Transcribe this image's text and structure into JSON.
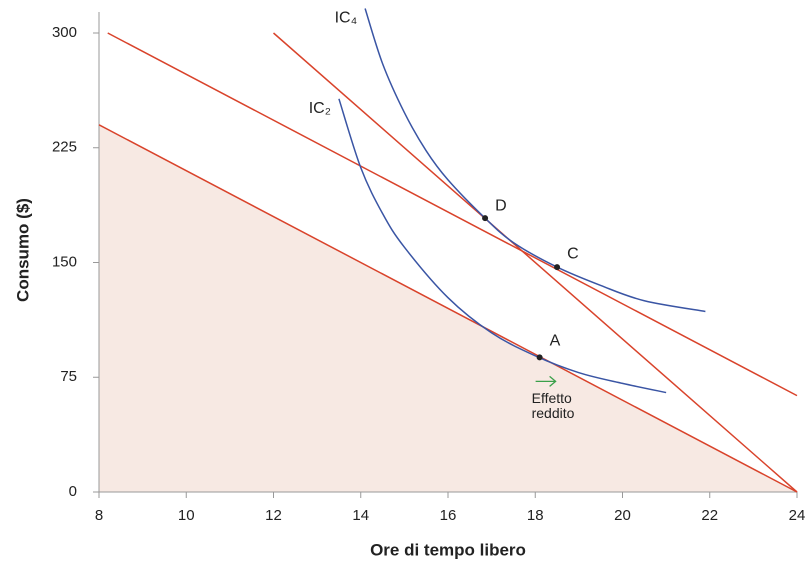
{
  "chart_data": {
    "type": "line",
    "xlabel": "Ore di tempo libero",
    "ylabel": "Consumo ($)",
    "xlim": [
      8,
      24
    ],
    "ylim": [
      0,
      300
    ],
    "xticks": [
      8,
      10,
      12,
      14,
      16,
      18,
      20,
      22,
      24
    ],
    "yticks": [
      0,
      75,
      150,
      225,
      300
    ],
    "series": [
      {
        "x": [
          8,
          24
        ],
        "values": [
          240,
          0
        ],
        "color": "#d9432b",
        "fill": "#f7e9e3"
      },
      {
        "x": [
          8.2,
          24
        ],
        "values": [
          300,
          63
        ],
        "color": "#d9432b"
      },
      {
        "x": [
          12,
          24
        ],
        "values": [
          300,
          0
        ],
        "color": "#d9432b"
      },
      {
        "name": "IC₂",
        "color": "#3a55a4",
        "smooth": true,
        "x": [
          13.5,
          14,
          14.5,
          15,
          16,
          17,
          18,
          19,
          20,
          21
        ],
        "values": [
          257,
          212,
          182,
          160,
          127,
          104,
          89,
          78,
          71,
          65
        ]
      },
      {
        "name": "IC₄",
        "color": "#3a55a4",
        "smooth": true,
        "x": [
          14.1,
          14.5,
          15,
          15.5,
          16,
          16.85,
          17.5,
          18.5,
          19.5,
          20.5,
          21.9
        ],
        "values": [
          316,
          280,
          248,
          223,
          204,
          179,
          163,
          147,
          135,
          125,
          118
        ]
      }
    ],
    "points": [
      {
        "label": "A",
        "x": 18.1,
        "y": 88
      },
      {
        "label": "D",
        "x": 16.85,
        "y": 179
      },
      {
        "label": "C",
        "x": 18.5,
        "y": 147
      }
    ],
    "annotation": {
      "lines": [
        "Effetto",
        "reddito"
      ],
      "color": "#3aa04a"
    }
  }
}
